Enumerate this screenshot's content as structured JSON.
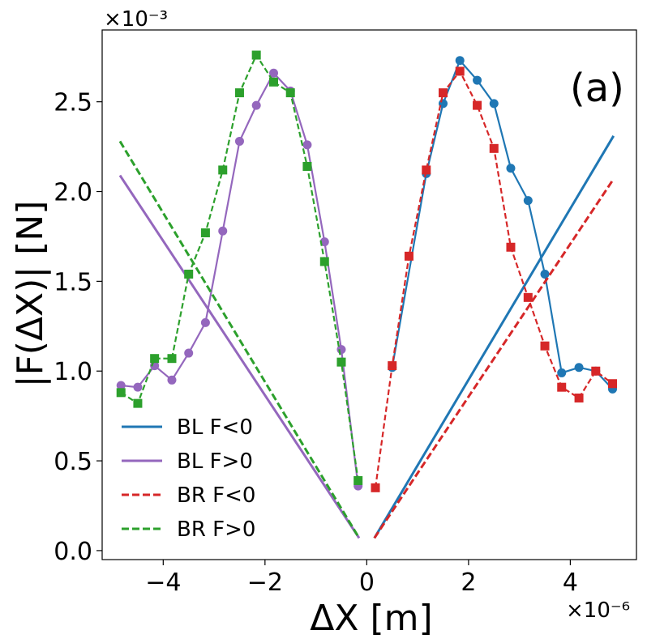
{
  "chart_data": {
    "type": "line",
    "panel_label": "(a)",
    "xlabel": "ΔX [m]",
    "ylabel": "|F(ΔX)| [N]",
    "x_scale_label": "×10⁻⁶",
    "y_scale_label": "×10⁻³",
    "xlim": [
      -5.2,
      5.3
    ],
    "ylim": [
      -0.05,
      2.9
    ],
    "xticks": [
      -4,
      -2,
      0,
      2,
      4
    ],
    "xtick_labels": [
      "−4",
      "−2",
      "0",
      "2",
      "4"
    ],
    "yticks": [
      0.0,
      0.5,
      1.0,
      1.5,
      2.0,
      2.5
    ],
    "ytick_labels": [
      "0.0",
      "0.5",
      "1.0",
      "1.5",
      "2.0",
      "2.5"
    ],
    "legend_position": "lower-left",
    "series": [
      {
        "name": "BL F<0",
        "color": "#1f77b4",
        "dash": "solid",
        "marker": "circle",
        "fit": {
          "x": [
            0.15,
            4.85
          ],
          "y": [
            0.07,
            2.31
          ]
        },
        "points": {
          "x": [
            0.5,
            1.17,
            1.5,
            1.83,
            2.17,
            2.5,
            2.83,
            3.17,
            3.5,
            3.83,
            4.17,
            4.5,
            4.83
          ],
          "y": [
            1.02,
            2.1,
            2.49,
            2.73,
            2.62,
            2.49,
            2.13,
            1.95,
            1.54,
            0.99,
            1.02,
            1.0,
            0.9
          ]
        }
      },
      {
        "name": "BL F>0",
        "color": "#9467bd",
        "dash": "solid",
        "marker": "circle",
        "fit": {
          "x": [
            -4.85,
            -0.15
          ],
          "y": [
            2.09,
            0.07
          ]
        },
        "points": {
          "x": [
            -4.83,
            -4.5,
            -4.17,
            -3.83,
            -3.5,
            -3.17,
            -2.83,
            -2.5,
            -2.17,
            -1.83,
            -1.5,
            -1.17,
            -0.83,
            -0.5,
            -0.17
          ],
          "y": [
            0.92,
            0.91,
            1.03,
            0.95,
            1.1,
            1.27,
            1.78,
            2.28,
            2.48,
            2.66,
            2.56,
            2.26,
            1.72,
            1.12,
            0.36
          ]
        }
      },
      {
        "name": "BR F<0",
        "color": "#d62728",
        "dash": "dashed",
        "marker": "square",
        "fit": {
          "x": [
            0.15,
            4.85
          ],
          "y": [
            0.07,
            2.07
          ]
        },
        "points": {
          "x": [
            0.17,
            0.5,
            0.83,
            1.17,
            1.5,
            1.83,
            2.17,
            2.5,
            2.83,
            3.17,
            3.5,
            3.83,
            4.17,
            4.5,
            4.83
          ],
          "y": [
            0.35,
            1.03,
            1.64,
            2.12,
            2.55,
            2.67,
            2.48,
            2.24,
            1.69,
            1.41,
            1.14,
            0.91,
            0.85,
            1.0,
            0.93
          ]
        }
      },
      {
        "name": "BR F>0",
        "color": "#2ca02c",
        "dash": "dashed",
        "marker": "square",
        "fit": {
          "x": [
            -4.85,
            -0.15
          ],
          "y": [
            2.28,
            0.07
          ]
        },
        "points": {
          "x": [
            -4.83,
            -4.5,
            -4.17,
            -3.83,
            -3.5,
            -3.17,
            -2.83,
            -2.5,
            -2.17,
            -1.83,
            -1.5,
            -1.17,
            -0.83,
            -0.5,
            -0.17
          ],
          "y": [
            0.88,
            0.82,
            1.07,
            1.07,
            1.54,
            1.77,
            2.12,
            2.55,
            2.76,
            2.61,
            2.55,
            2.14,
            1.61,
            1.05,
            0.39
          ]
        }
      }
    ]
  }
}
